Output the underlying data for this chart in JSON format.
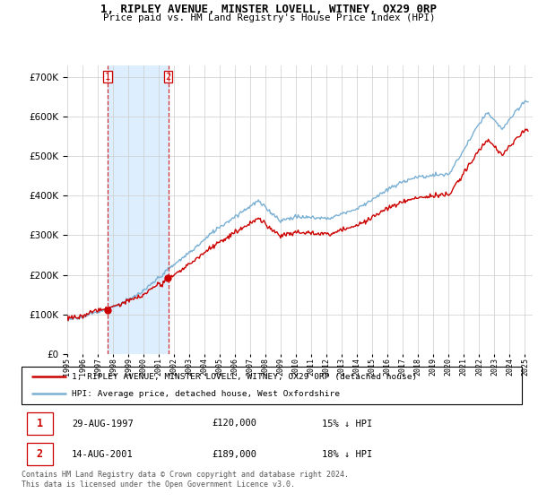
{
  "title": "1, RIPLEY AVENUE, MINSTER LOVELL, WITNEY, OX29 0RP",
  "subtitle": "Price paid vs. HM Land Registry's House Price Index (HPI)",
  "legend_line1": "1, RIPLEY AVENUE, MINSTER LOVELL, WITNEY, OX29 0RP (detached house)",
  "legend_line2": "HPI: Average price, detached house, West Oxfordshire",
  "transaction1_label": "1",
  "transaction1_date": "29-AUG-1997",
  "transaction1_price": "£120,000",
  "transaction1_hpi": "15% ↓ HPI",
  "transaction2_label": "2",
  "transaction2_date": "14-AUG-2001",
  "transaction2_price": "£189,000",
  "transaction2_hpi": "18% ↓ HPI",
  "copyright": "Contains HM Land Registry data © Crown copyright and database right 2024.\nThis data is licensed under the Open Government Licence v3.0.",
  "red_color": "#cc0000",
  "blue_color": "#7ab0d4",
  "shade_color": "#ddeeff",
  "vline_color": "#cc0000",
  "grid_color": "#cccccc",
  "background_color": "#ffffff",
  "ylim": [
    0,
    730000
  ],
  "yticks": [
    0,
    100000,
    200000,
    300000,
    400000,
    500000,
    600000,
    700000
  ],
  "xlim_start": 1995.0,
  "xlim_end": 2025.5,
  "price_t1": 120000,
  "price_t2": 189000,
  "t1_year": 1997.635,
  "t2_year": 2001.618
}
